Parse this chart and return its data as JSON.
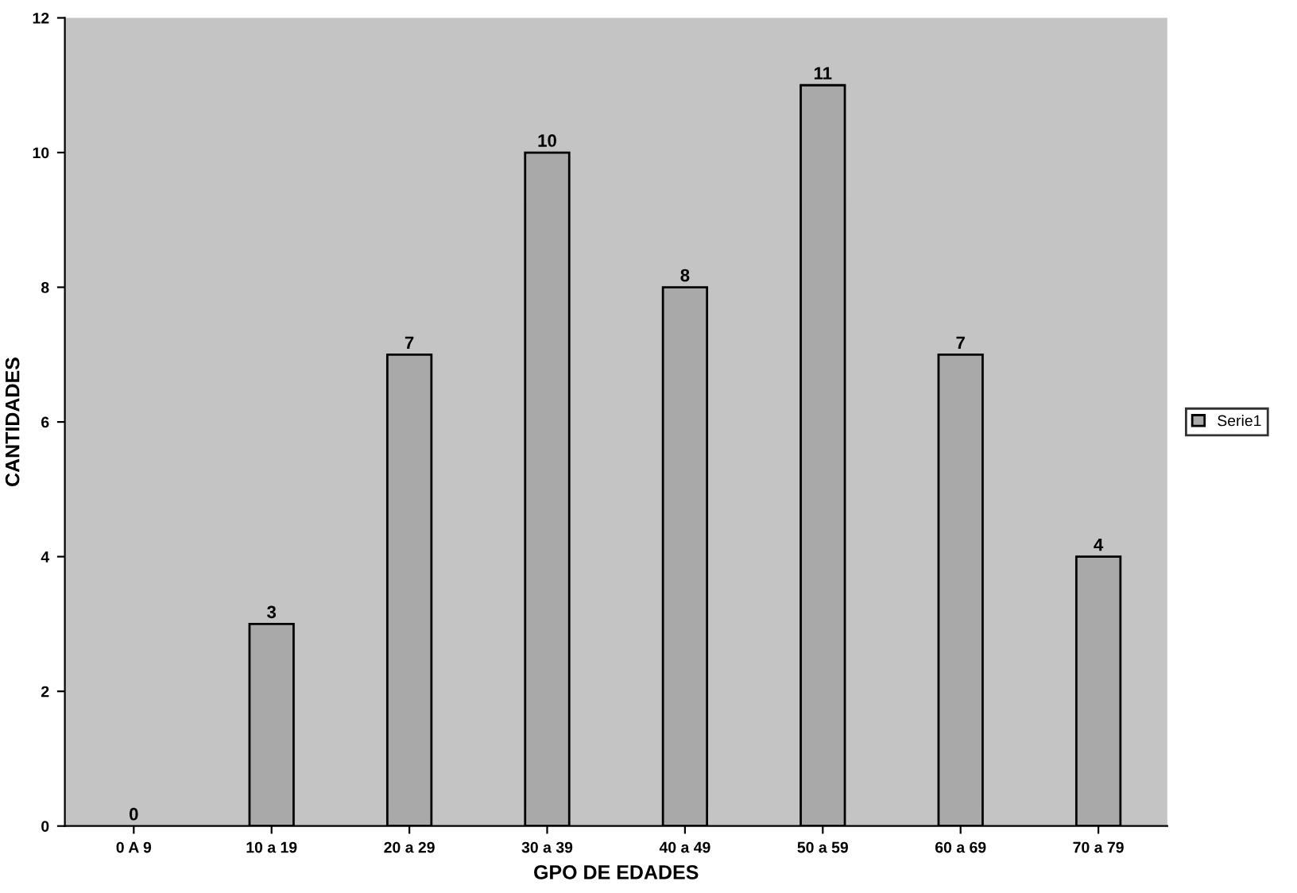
{
  "chart_data": {
    "type": "bar",
    "xlabel": "GPO DE EDADES",
    "ylabel": "CANTIDADES",
    "categories": [
      "0 A 9",
      "10 a 19",
      "20 a 29",
      "30 a 39",
      "40 a 49",
      "50 a 59",
      "60 a 69",
      "70 a 79"
    ],
    "series": [
      {
        "name": "Serie1",
        "color": "#a9a9a9",
        "values": [
          0,
          3,
          7,
          10,
          8,
          11,
          7,
          4
        ]
      }
    ],
    "ylim": [
      0,
      12
    ],
    "yticks": [
      0,
      2,
      4,
      6,
      8,
      10,
      12
    ],
    "data_labels": true,
    "legend": "right",
    "grid": false
  }
}
